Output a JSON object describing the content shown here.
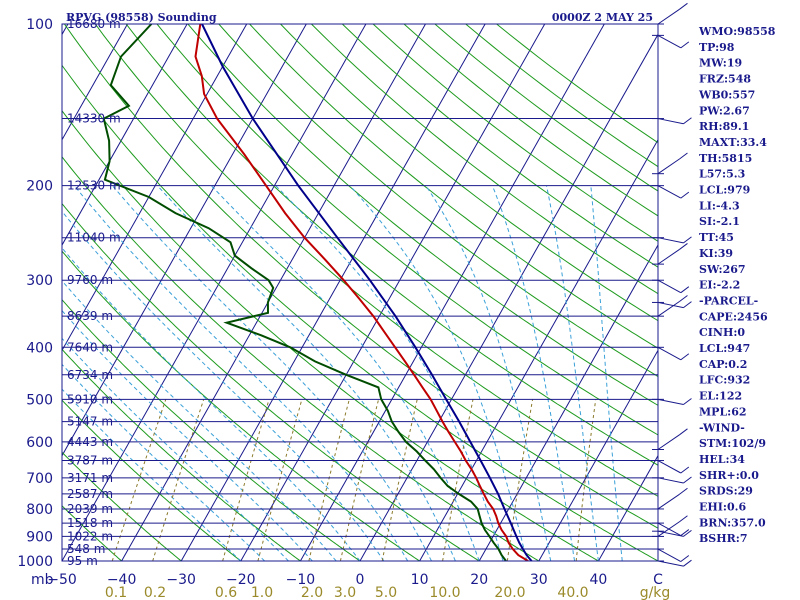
{
  "header": {
    "station": "RPVG (98558) Sounding",
    "time": "0000Z  2 MAY 25"
  },
  "chart_data": {
    "type": "skew-t",
    "pressure_labels": [
      {
        "p": 100,
        "text": "100"
      },
      {
        "p": 200,
        "text": "200"
      },
      {
        "p": 300,
        "text": "300"
      },
      {
        "p": 400,
        "text": "400"
      },
      {
        "p": 500,
        "text": "500"
      },
      {
        "p": 600,
        "text": "600"
      },
      {
        "p": 700,
        "text": "700"
      },
      {
        "p": 800,
        "text": "800"
      },
      {
        "p": 900,
        "text": "900"
      },
      {
        "p": 1000,
        "text": "1000"
      }
    ],
    "height_levels": [
      {
        "p": 100,
        "text": "16680 m"
      },
      {
        "p": 150,
        "text": "14330 m"
      },
      {
        "p": 200,
        "text": "12530 m"
      },
      {
        "p": 250,
        "text": "11040 m"
      },
      {
        "p": 300,
        "text": "9760 m"
      },
      {
        "p": 350,
        "text": "8639 m"
      },
      {
        "p": 400,
        "text": "7640 m"
      },
      {
        "p": 450,
        "text": "6734 m"
      },
      {
        "p": 500,
        "text": "5910 m"
      },
      {
        "p": 550,
        "text": "5147 m"
      },
      {
        "p": 600,
        "text": "4443 m"
      },
      {
        "p": 650,
        "text": "3787 m"
      },
      {
        "p": 700,
        "text": "3171 m"
      },
      {
        "p": 750,
        "text": "2587 m"
      },
      {
        "p": 800,
        "text": "2039 m"
      },
      {
        "p": 850,
        "text": "1518 m"
      },
      {
        "p": 900,
        "text": "1022 m"
      },
      {
        "p": 950,
        "text": "548 m"
      },
      {
        "p": 1000,
        "text": "95 m"
      }
    ],
    "temp_ticks": [
      {
        "t": -50,
        "text": "−50"
      },
      {
        "t": -40,
        "text": "−40"
      },
      {
        "t": -30,
        "text": "−30"
      },
      {
        "t": -20,
        "text": "−20"
      },
      {
        "t": -10,
        "text": "−10"
      },
      {
        "t": 0,
        "text": "0"
      },
      {
        "t": 10,
        "text": "10"
      },
      {
        "t": 20,
        "text": "20"
      },
      {
        "t": 30,
        "text": "30"
      },
      {
        "t": 40,
        "text": "40"
      },
      {
        "t": 50,
        "text": "C"
      }
    ],
    "mixing_ratio_ticks": [
      "0.1",
      "0.2",
      "0.6",
      "1.0",
      "2.0",
      "3.0",
      "5.0",
      "10.0",
      "20.0",
      "40.0",
      "g/kg"
    ],
    "temperature_profile": [
      [
        1000,
        28.2
      ],
      [
        975,
        26.0
      ],
      [
        950,
        24.5
      ],
      [
        925,
        23.2
      ],
      [
        900,
        22.2
      ],
      [
        875,
        20.8
      ],
      [
        850,
        19.6
      ],
      [
        825,
        18.6
      ],
      [
        800,
        17.4
      ],
      [
        775,
        15.8
      ],
      [
        750,
        14.4
      ],
      [
        725,
        13.0
      ],
      [
        700,
        11.6
      ],
      [
        675,
        10.0
      ],
      [
        650,
        8.2
      ],
      [
        625,
        6.5
      ],
      [
        600,
        4.6
      ],
      [
        575,
        2.6
      ],
      [
        550,
        0.6
      ],
      [
        525,
        -1.4
      ],
      [
        500,
        -3.5
      ],
      [
        475,
        -6.0
      ],
      [
        450,
        -8.6
      ],
      [
        425,
        -11.4
      ],
      [
        400,
        -14.4
      ],
      [
        375,
        -17.6
      ],
      [
        350,
        -21.0
      ],
      [
        325,
        -25.0
      ],
      [
        300,
        -29.4
      ],
      [
        275,
        -34.4
      ],
      [
        250,
        -40.0
      ],
      [
        225,
        -45.6
      ],
      [
        200,
        -51.4
      ],
      [
        175,
        -58.0
      ],
      [
        150,
        -66.0
      ],
      [
        135,
        -70.5
      ],
      [
        125,
        -72.6
      ],
      [
        115,
        -75.5
      ],
      [
        100,
        -77.8
      ]
    ],
    "dewpoint_profile": [
      [
        1000,
        24.5
      ],
      [
        975,
        23.2
      ],
      [
        950,
        22.1
      ],
      [
        925,
        20.7
      ],
      [
        900,
        19.4
      ],
      [
        875,
        18.0
      ],
      [
        850,
        16.8
      ],
      [
        825,
        15.8
      ],
      [
        800,
        14.8
      ],
      [
        775,
        13.0
      ],
      [
        750,
        10.2
      ],
      [
        725,
        7.6
      ],
      [
        700,
        5.6
      ],
      [
        675,
        3.7
      ],
      [
        650,
        1.4
      ],
      [
        625,
        -0.9
      ],
      [
        600,
        -3.6
      ],
      [
        575,
        -5.8
      ],
      [
        550,
        -7.9
      ],
      [
        525,
        -9.6
      ],
      [
        500,
        -11.8
      ],
      [
        475,
        -13.4
      ],
      [
        450,
        -20.0
      ],
      [
        425,
        -26.5
      ],
      [
        400,
        -32.0
      ],
      [
        380,
        -38.0
      ],
      [
        360,
        -45.0
      ],
      [
        345,
        -39.0
      ],
      [
        330,
        -40.0
      ],
      [
        310,
        -40.5
      ],
      [
        300,
        -42.0
      ],
      [
        285,
        -46.0
      ],
      [
        270,
        -50.0
      ],
      [
        255,
        -52.0
      ],
      [
        240,
        -57.0
      ],
      [
        225,
        -64.0
      ],
      [
        210,
        -70.0
      ],
      [
        195,
        -79.0
      ],
      [
        180,
        -80.0
      ],
      [
        165,
        -82.0
      ],
      [
        150,
        -85.0
      ],
      [
        142,
        -82.0
      ],
      [
        130,
        -87.0
      ],
      [
        115,
        -88.0
      ],
      [
        100,
        -86.0
      ]
    ],
    "parcel_profile": [
      [
        1000,
        28.8
      ],
      [
        975,
        27.4
      ],
      [
        950,
        26.2
      ],
      [
        925,
        25.0
      ],
      [
        900,
        23.9
      ],
      [
        850,
        21.7
      ],
      [
        800,
        19.3
      ],
      [
        750,
        16.8
      ],
      [
        700,
        13.9
      ],
      [
        650,
        10.7
      ],
      [
        600,
        7.2
      ],
      [
        550,
        3.4
      ],
      [
        500,
        -0.9
      ],
      [
        450,
        -5.6
      ],
      [
        400,
        -11.0
      ],
      [
        350,
        -17.3
      ],
      [
        300,
        -25.0
      ],
      [
        250,
        -34.5
      ],
      [
        200,
        -46.0
      ],
      [
        150,
        -60.0
      ],
      [
        120,
        -70.0
      ],
      [
        100,
        -77.5
      ]
    ],
    "indices": [
      "WMO:98558",
      "TP:98",
      "MW:19",
      "FRZ:548",
      "WB0:557",
      "PW:2.67",
      "RH:89.1",
      "MAXT:33.4",
      "TH:5815",
      "L57:5.3",
      "LCL:979",
      "LI:-4.3",
      "SI:-2.1",
      "TT:45",
      "KI:39",
      "SW:267",
      "EI:-2.2",
      "-PARCEL-",
      "CAPE:2456",
      "CINH:0",
      "LCL:947",
      "CAP:0.2",
      "LFC:932",
      "EL:122",
      "MPL:62",
      "-WIND-",
      "STM:102/9",
      "HEL:34",
      "SHR+:0.0",
      "SRDS:29",
      "EHI:0.6",
      "BRN:357.0",
      "BSHR:7"
    ],
    "xlim": [
      -50,
      50
    ],
    "plim": [
      100,
      1000
    ],
    "colors": {
      "frame": "#1a1a8c",
      "isotherm": "#1a1a8c",
      "dry_adiabat": "#1e9b1e",
      "moist_adiabat": "#3aa0d8",
      "mixing_ratio": "#8a7a2a",
      "temperature": "#c00000",
      "dewpoint": "#004d00",
      "parcel": "#00008b"
    }
  }
}
